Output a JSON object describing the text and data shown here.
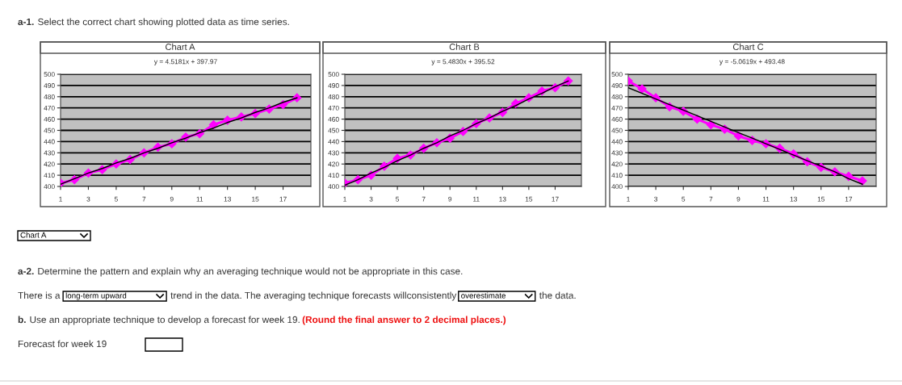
{
  "chart_data": [
    {
      "type": "line",
      "title": "Chart A",
      "annotations": [
        "y = 4.5181x + 397.97"
      ],
      "x": [
        1,
        2,
        3,
        4,
        5,
        6,
        7,
        8,
        9,
        10,
        11,
        12,
        13,
        14,
        15,
        16,
        17,
        18
      ],
      "xlim": [
        1,
        19
      ],
      "xticks": [
        1,
        3,
        5,
        7,
        9,
        11,
        13,
        15,
        17
      ],
      "ylim": [
        400,
        500
      ],
      "yticks": [
        400,
        410,
        420,
        430,
        440,
        450,
        460,
        470,
        480,
        490,
        500
      ],
      "grid": "y",
      "series": [
        {
          "color": "#ff00ff",
          "marker": "diamond",
          "values": [
            403,
            406,
            412,
            415,
            420,
            424,
            430,
            435,
            438,
            444,
            447,
            455,
            459,
            462,
            465,
            469,
            473,
            479
          ]
        },
        {
          "type": "line",
          "color": "#000000",
          "marker": "none",
          "values": [
            402,
            407,
            412,
            416,
            421,
            425,
            430,
            434,
            439,
            443,
            448,
            452,
            457,
            461,
            466,
            470,
            475,
            479
          ]
        }
      ]
    },
    {
      "type": "line",
      "title": "Chart B",
      "annotations": [
        "y = 5.4830x + 395.52"
      ],
      "x": [
        1,
        2,
        3,
        4,
        5,
        6,
        7,
        8,
        9,
        10,
        11,
        12,
        13,
        14,
        15,
        16,
        17,
        18
      ],
      "xlim": [
        1,
        19
      ],
      "xticks": [
        1,
        3,
        5,
        7,
        9,
        11,
        13,
        15,
        17
      ],
      "ylim": [
        400,
        500
      ],
      "yticks": [
        400,
        410,
        420,
        430,
        440,
        450,
        460,
        470,
        480,
        490,
        500
      ],
      "grid": "y",
      "series": [
        {
          "color": "#ff00ff",
          "marker": "diamond",
          "values": [
            403,
            406,
            410,
            418,
            425,
            428,
            434,
            439,
            443,
            449,
            456,
            461,
            466,
            474,
            479,
            485,
            488,
            494
          ]
        },
        {
          "type": "line",
          "color": "#000000",
          "marker": "none",
          "values": [
            401,
            406,
            412,
            417,
            423,
            428,
            434,
            439,
            445,
            450,
            456,
            461,
            467,
            472,
            478,
            483,
            489,
            494
          ]
        }
      ]
    },
    {
      "type": "line",
      "title": "Chart C",
      "annotations": [
        "y = -5.0619x + 493.48"
      ],
      "x": [
        1,
        2,
        3,
        4,
        5,
        6,
        7,
        8,
        9,
        10,
        11,
        12,
        13,
        14,
        15,
        16,
        17,
        18
      ],
      "xlim": [
        1,
        19
      ],
      "xticks": [
        1,
        3,
        5,
        7,
        9,
        11,
        13,
        15,
        17
      ],
      "ylim": [
        400,
        500
      ],
      "yticks": [
        400,
        410,
        420,
        430,
        440,
        450,
        460,
        470,
        480,
        490,
        500
      ],
      "grid": "y",
      "series": [
        {
          "color": "#ff00ff",
          "marker": "diamond",
          "values": [
            494,
            487,
            479,
            471,
            467,
            460,
            455,
            451,
            445,
            441,
            438,
            434,
            429,
            422,
            417,
            413,
            409,
            405
          ]
        },
        {
          "type": "line",
          "color": "#000000",
          "marker": "none",
          "values": [
            488,
            483,
            478,
            473,
            468,
            463,
            458,
            453,
            448,
            443,
            438,
            433,
            428,
            423,
            418,
            413,
            407,
            402
          ]
        }
      ]
    },
    {
      "type": "other",
      "annotations": [
        "a-1.",
        "Select the correct chart showing plotted data as time series.",
        "Chart A",
        "a-2.",
        "Determine the pattern and explain why an averaging technique would not be appropriate in this case.",
        "There is a",
        "long-term upward",
        "trend in the data. The averaging technique forecasts willconsistently",
        "overestimate",
        "the data.",
        "b.",
        "Use an appropriate technique to develop a forecast for week 19.",
        "(Round the final answer to 2 decimal places.)",
        "Forecast for week 19"
      ]
    }
  ]
}
